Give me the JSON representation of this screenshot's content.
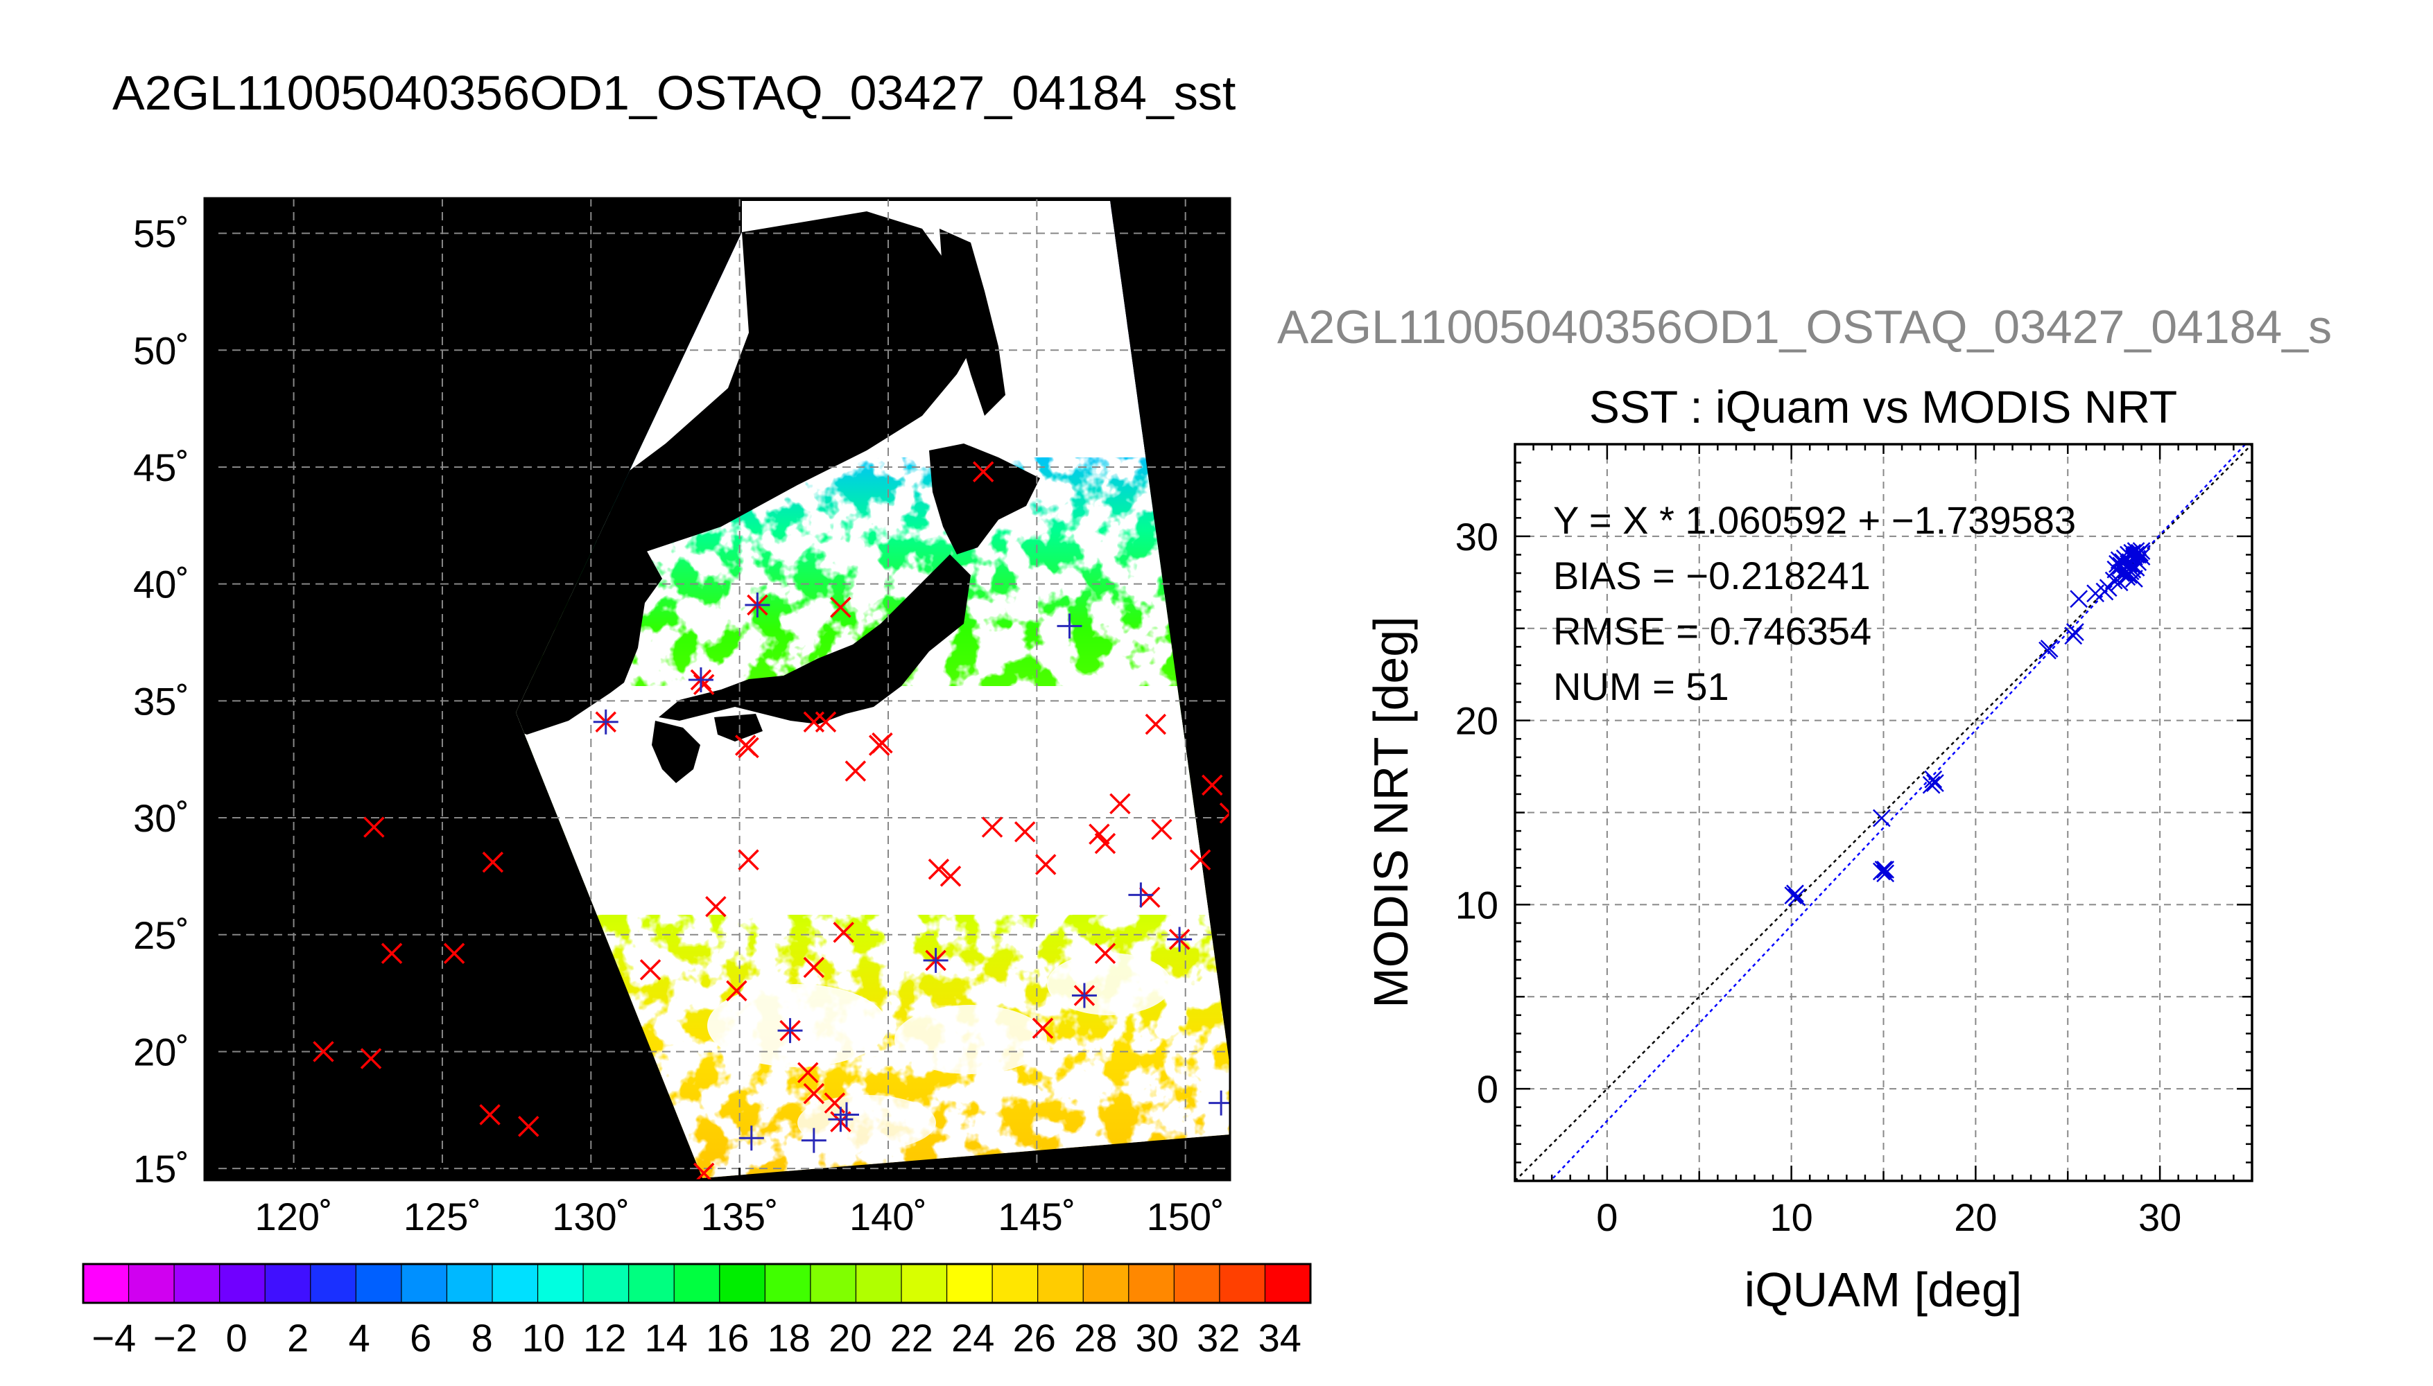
{
  "page_title": "A2GL11005040356OD1_OSTAQ_03427_04184_sst",
  "map": {
    "lat_ticks": [
      "55˚",
      "50˚",
      "45˚",
      "40˚",
      "35˚",
      "30˚",
      "25˚",
      "20˚",
      "15˚"
    ],
    "lon_ticks": [
      "120˚",
      "125˚",
      "130˚",
      "135˚",
      "140˚",
      "145˚",
      "150˚"
    ],
    "lon_range": [
      117,
      151.5
    ],
    "lat_range": [
      14.5,
      56.5
    ],
    "colors": {
      "background": "#000000",
      "cloud": "#ffffff",
      "land": "#000000",
      "marker_red": "#ff0000",
      "marker_blue": "#2a2ab8"
    },
    "red_markers": [
      [
        143.2,
        44.8
      ],
      [
        138.4,
        39.0
      ],
      [
        135.6,
        39.1
      ],
      [
        133.8,
        35.7
      ],
      [
        130.5,
        34.1
      ],
      [
        133.7,
        35.9
      ],
      [
        135.2,
        33.1
      ],
      [
        135.3,
        33.0
      ],
      [
        137.5,
        34.1
      ],
      [
        137.9,
        34.1
      ],
      [
        138.9,
        32.0
      ],
      [
        139.7,
        33.1
      ],
      [
        139.8,
        33.2
      ],
      [
        149.0,
        34.0
      ],
      [
        150.9,
        31.4
      ],
      [
        151.5,
        30.2
      ],
      [
        150.5,
        28.2
      ],
      [
        147.8,
        30.6
      ],
      [
        147.1,
        29.3
      ],
      [
        147.3,
        28.9
      ],
      [
        149.2,
        29.5
      ],
      [
        144.6,
        29.4
      ],
      [
        143.5,
        29.6
      ],
      [
        145.3,
        28.0
      ],
      [
        141.7,
        27.8
      ],
      [
        142.1,
        27.5
      ],
      [
        135.3,
        28.2
      ],
      [
        134.2,
        26.2
      ],
      [
        137.5,
        23.6
      ],
      [
        138.5,
        25.1
      ],
      [
        141.6,
        23.9
      ],
      [
        147.3,
        24.2
      ],
      [
        148.8,
        26.6
      ],
      [
        149.8,
        24.8
      ],
      [
        134.9,
        22.6
      ],
      [
        136.7,
        20.9
      ],
      [
        145.2,
        21.0
      ],
      [
        146.6,
        22.4
      ],
      [
        137.3,
        19.1
      ],
      [
        137.5,
        18.2
      ],
      [
        138.2,
        17.8
      ],
      [
        138.4,
        17.0
      ],
      [
        122.7,
        29.6
      ],
      [
        123.3,
        24.2
      ],
      [
        125.4,
        24.2
      ],
      [
        126.7,
        28.1
      ],
      [
        121.0,
        20.0
      ],
      [
        122.6,
        19.7
      ],
      [
        126.6,
        17.3
      ],
      [
        127.9,
        16.8
      ],
      [
        132.0,
        23.5
      ],
      [
        133.8,
        14.8
      ]
    ],
    "blue_markers": [
      [
        133.7,
        35.9
      ],
      [
        135.6,
        39.1
      ],
      [
        146.1,
        38.2
      ],
      [
        130.5,
        34.1
      ],
      [
        141.6,
        23.9
      ],
      [
        146.6,
        22.4
      ],
      [
        148.5,
        26.7
      ],
      [
        149.8,
        24.8
      ],
      [
        136.7,
        20.9
      ],
      [
        135.4,
        16.3
      ],
      [
        137.5,
        16.2
      ],
      [
        138.4,
        17.1
      ],
      [
        138.6,
        17.3
      ],
      [
        151.2,
        17.8
      ]
    ]
  },
  "colorbar": {
    "tick_labels": [
      "−4",
      "−2",
      "0",
      "2",
      "4",
      "6",
      "8",
      "10",
      "12",
      "14",
      "16",
      "18",
      "20",
      "22",
      "24",
      "26",
      "28",
      "30",
      "32",
      "34"
    ],
    "range": [
      -5,
      35
    ],
    "colors": [
      "#ff00ff",
      "#d000f0",
      "#a000ff",
      "#7000ff",
      "#4010ff",
      "#1a30ff",
      "#0060ff",
      "#0090ff",
      "#00b8ff",
      "#00e0ff",
      "#00ffe0",
      "#00ffb0",
      "#00ff80",
      "#00ff40",
      "#00ee00",
      "#40ff00",
      "#80ff00",
      "#b0ff00",
      "#d8ff00",
      "#ffff00",
      "#ffe600",
      "#ffcc00",
      "#ffaa00",
      "#ff8800",
      "#ff6600",
      "#ff4000",
      "#ff0000"
    ]
  },
  "scatter": {
    "overflow_title": "A2GL11005040356OD1_OSTAQ_03427_04184_s",
    "colors": {
      "points": "#0000dd",
      "fit_line": "#0000ff",
      "one_to_one": "#000000",
      "grid": "#888888"
    },
    "stats": [
      "Y = X * 1.060592 + −1.739583",
      "BIAS = −0.218241",
      "RMSE = 0.746354",
      "NUM = 51"
    ]
  },
  "chart_data": {
    "type": "scatter",
    "title": "SST : iQuam vs MODIS NRT",
    "xlabel": "iQUAM [deg]",
    "ylabel": "MODIS NRT [deg]",
    "xlim": [
      -5,
      35
    ],
    "ylim": [
      -5,
      35
    ],
    "x_ticks": [
      0,
      10,
      20,
      30
    ],
    "y_ticks": [
      0,
      10,
      20,
      30
    ],
    "x_tick_labels": [
      "0",
      "10",
      "20",
      "30"
    ],
    "y_tick_labels": [
      "0",
      "10",
      "20",
      "30"
    ],
    "grid": true,
    "series": [
      {
        "marker": "x",
        "x": [
          10.1,
          10.2,
          10.3,
          14.9,
          15.0,
          15.1,
          14.9,
          15.1,
          17.6,
          17.7,
          17.8,
          23.9,
          24.0,
          25.3,
          25.4,
          25.6,
          26.5,
          27.0,
          27.2,
          27.5,
          27.6,
          27.7,
          27.8,
          27.9,
          27.9,
          28.0,
          28.1,
          28.2,
          28.2,
          28.3,
          28.4,
          28.4,
          28.5,
          28.5,
          28.6,
          28.6,
          28.7,
          28.7,
          28.8,
          28.8,
          28.9,
          29.0,
          29.0,
          27.8,
          28.1,
          28.3,
          28.6,
          28.7,
          28.9,
          28.3,
          28.5
        ],
        "y": [
          10.5,
          10.6,
          10.4,
          14.7,
          11.9,
          11.7,
          11.8,
          11.9,
          16.5,
          16.8,
          16.6,
          23.8,
          23.9,
          24.6,
          24.8,
          26.6,
          26.9,
          27.0,
          27.2,
          27.6,
          28.2,
          28.5,
          28.7,
          28.4,
          28.0,
          28.6,
          28.8,
          28.3,
          27.8,
          29.0,
          28.6,
          28.1,
          29.1,
          28.4,
          28.9,
          27.7,
          29.2,
          28.3,
          29.0,
          28.6,
          29.1,
          28.9,
          29.2,
          27.5,
          28.0,
          28.5,
          28.8,
          29.0,
          29.1,
          27.9,
          28.2
        ]
      }
    ],
    "lines": [
      {
        "kind": "one_to_one",
        "slope": 1,
        "intercept": 0
      },
      {
        "kind": "fit",
        "slope": 1.060592,
        "intercept": -1.739583
      }
    ]
  }
}
